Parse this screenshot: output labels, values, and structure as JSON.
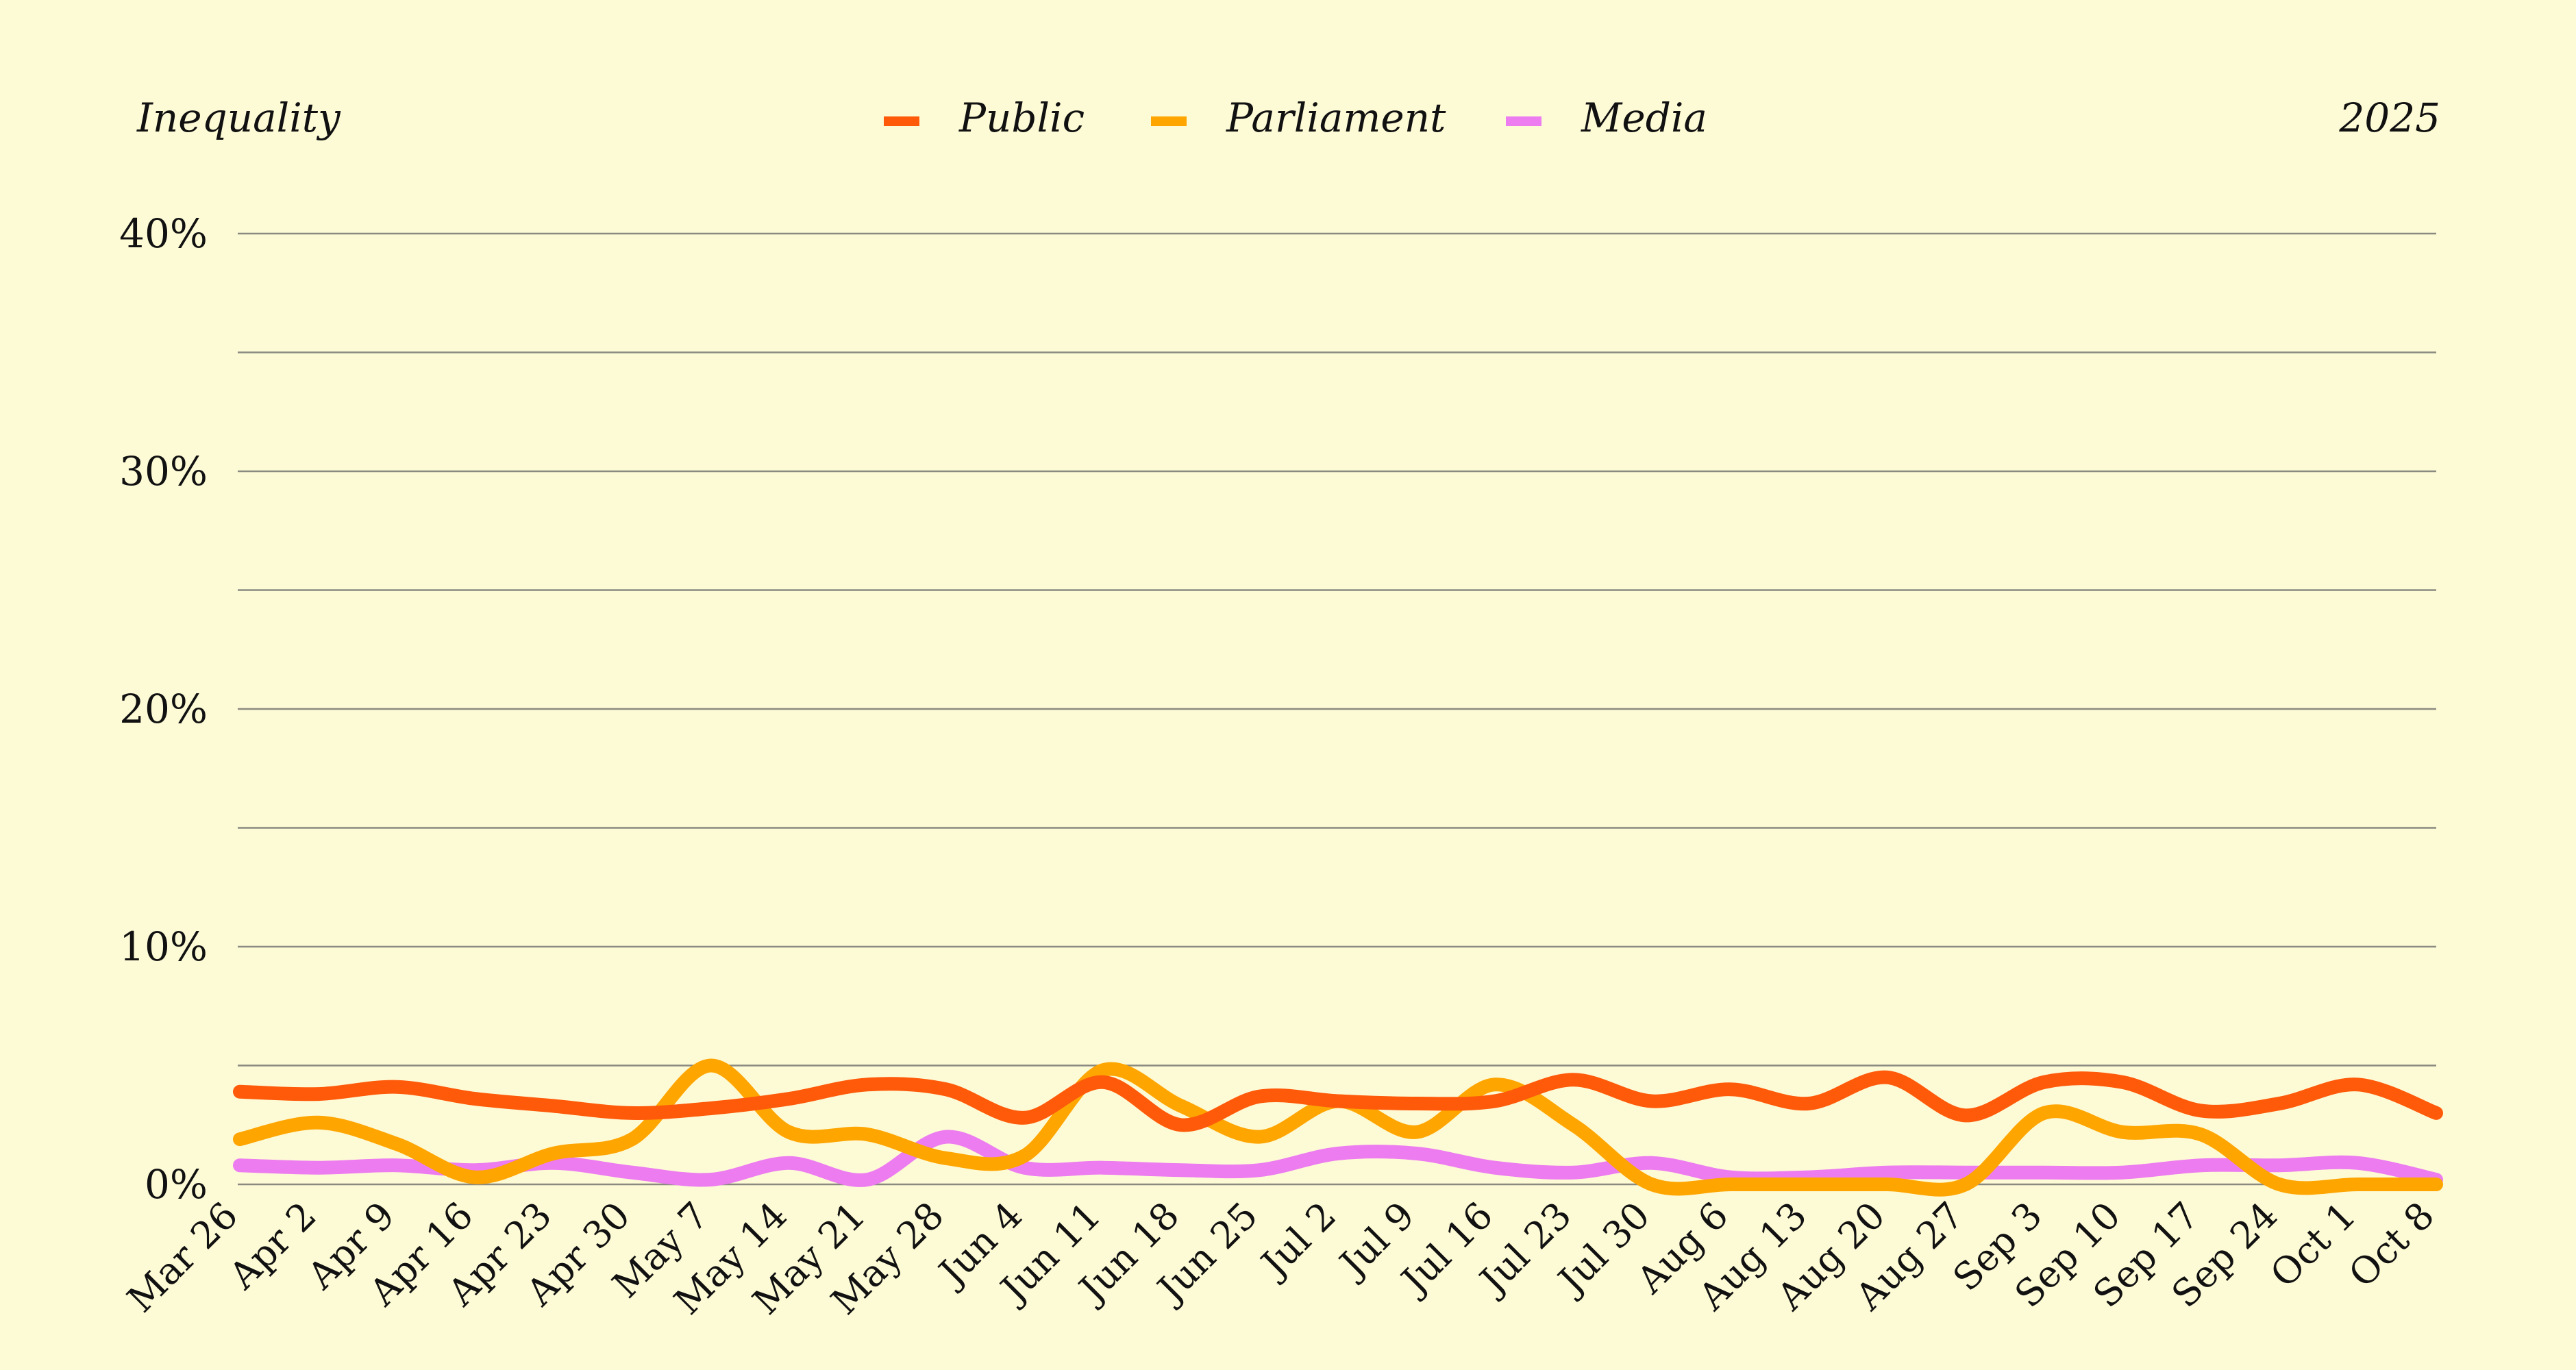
{
  "chart_data": {
    "type": "line",
    "title": "Inequality",
    "year_label": "2025",
    "xlabel": "",
    "ylabel": "",
    "ylim": [
      0,
      40
    ],
    "y_ticks": [
      "0%",
      "10%",
      "20%",
      "30%",
      "40%"
    ],
    "y_tick_values": [
      0,
      10,
      20,
      30,
      40
    ],
    "y_gridlines": [
      0,
      5,
      10,
      15,
      20,
      25,
      30,
      35,
      40
    ],
    "grid": true,
    "legend_position": "top-center",
    "categories": [
      "Mar 26",
      "Apr 2",
      "Apr 9",
      "Apr 16",
      "Apr 23",
      "Apr 30",
      "May 7",
      "May 14",
      "May 21",
      "May 28",
      "Jun 4",
      "Jun 11",
      "Jun 18",
      "Jun 25",
      "Jul 2",
      "Jul 9",
      "Jul 16",
      "Jul 23",
      "Jul 30",
      "Aug 6",
      "Aug 13",
      "Aug 20",
      "Aug 27",
      "Sep 3",
      "Sep 10",
      "Sep 17",
      "Sep 24",
      "Oct 1",
      "Oct 8"
    ],
    "series": [
      {
        "name": "Public",
        "color": "#ff5a0a",
        "values": [
          3.9,
          3.8,
          4.1,
          3.6,
          3.3,
          3.0,
          3.2,
          3.6,
          4.2,
          4.0,
          2.8,
          4.3,
          2.5,
          3.7,
          3.5,
          3.4,
          3.5,
          4.4,
          3.5,
          4.0,
          3.4,
          4.5,
          2.9,
          4.3,
          4.3,
          3.1,
          3.4,
          4.2,
          3.0
        ]
      },
      {
        "name": "Parliament",
        "color": "#ffa500",
        "values": [
          1.9,
          2.6,
          1.7,
          0.3,
          1.3,
          1.9,
          5.0,
          2.2,
          2.1,
          1.1,
          1.2,
          4.8,
          3.3,
          2.0,
          3.5,
          2.2,
          4.2,
          2.5,
          0.0,
          0.0,
          0.0,
          0.0,
          0.0,
          3.0,
          2.2,
          2.1,
          0.0,
          0.0,
          0.0
        ]
      },
      {
        "name": "Media",
        "color": "#ec7cf0",
        "values": [
          0.8,
          0.7,
          0.8,
          0.6,
          0.9,
          0.5,
          0.2,
          0.9,
          0.2,
          2.0,
          0.7,
          0.7,
          0.6,
          0.6,
          1.3,
          1.3,
          0.7,
          0.5,
          0.9,
          0.3,
          0.3,
          0.5,
          0.5,
          0.5,
          0.5,
          0.8,
          0.8,
          0.9,
          0.2
        ]
      }
    ]
  }
}
